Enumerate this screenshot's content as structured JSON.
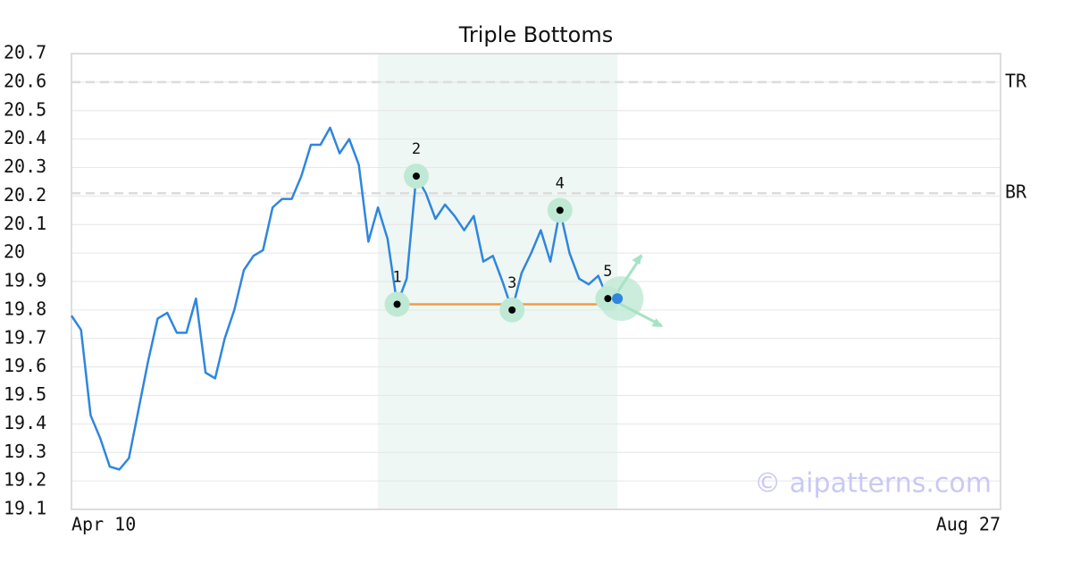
{
  "chart_data": {
    "type": "line",
    "title": "Triple Bottoms",
    "watermark": "© aipatterns.com",
    "xlim": [
      0,
      97
    ],
    "xticks": [
      {
        "value": 0,
        "label": "Apr 10"
      },
      {
        "value": 97,
        "label": "Aug 27"
      }
    ],
    "ylim": [
      19.1,
      20.7
    ],
    "yticks": [
      19.1,
      19.2,
      19.3,
      19.4,
      19.5,
      19.6,
      19.7,
      19.8,
      19.9,
      20.0,
      20.1,
      20.2,
      20.3,
      20.4,
      20.5,
      20.6,
      20.7
    ],
    "grid": true,
    "series": [
      {
        "color": "#2f86de",
        "x": [
          0,
          1,
          2,
          3,
          4,
          5,
          6,
          7,
          8,
          9,
          10,
          11,
          12,
          13,
          14,
          15,
          16,
          17,
          18,
          19,
          20,
          21,
          22,
          23,
          24,
          25,
          26,
          27,
          28,
          29,
          30,
          31,
          32,
          33,
          34,
          35,
          36,
          37,
          38,
          39,
          40,
          41,
          42,
          43,
          44,
          45,
          46,
          47,
          48,
          49,
          50,
          51,
          52,
          53,
          54,
          55,
          56,
          57
        ],
        "values": [
          19.78,
          19.73,
          19.43,
          19.35,
          19.25,
          19.24,
          19.28,
          19.45,
          19.62,
          19.77,
          19.79,
          19.72,
          19.72,
          19.84,
          19.58,
          19.56,
          19.7,
          19.8,
          19.94,
          19.99,
          20.01,
          20.16,
          20.19,
          20.19,
          20.27,
          20.38,
          20.38,
          20.44,
          20.35,
          20.4,
          20.31,
          20.04,
          20.16,
          20.05,
          19.82,
          19.91,
          20.27,
          20.21,
          20.12,
          20.17,
          20.13,
          20.08,
          20.13,
          19.97,
          19.99,
          19.9,
          19.8,
          19.93,
          20.0,
          20.08,
          19.97,
          20.15,
          20.0,
          19.91,
          19.89,
          19.92,
          19.84,
          19.84
        ]
      }
    ],
    "highlight": {
      "start": 32,
      "end": 57,
      "color": "#eef7f3"
    },
    "levels": [
      {
        "label": "TR",
        "value": 20.6
      },
      {
        "label": "BR",
        "value": 20.21
      }
    ],
    "support": {
      "value": 19.82,
      "start": 34,
      "end": 56,
      "color": "#f39a4a"
    },
    "pattern_points": [
      {
        "label": "1",
        "index": 34
      },
      {
        "label": "2",
        "index": 36
      },
      {
        "label": "3",
        "index": 46
      },
      {
        "label": "4",
        "index": 51
      },
      {
        "label": "5",
        "index": 56
      }
    ]
  }
}
